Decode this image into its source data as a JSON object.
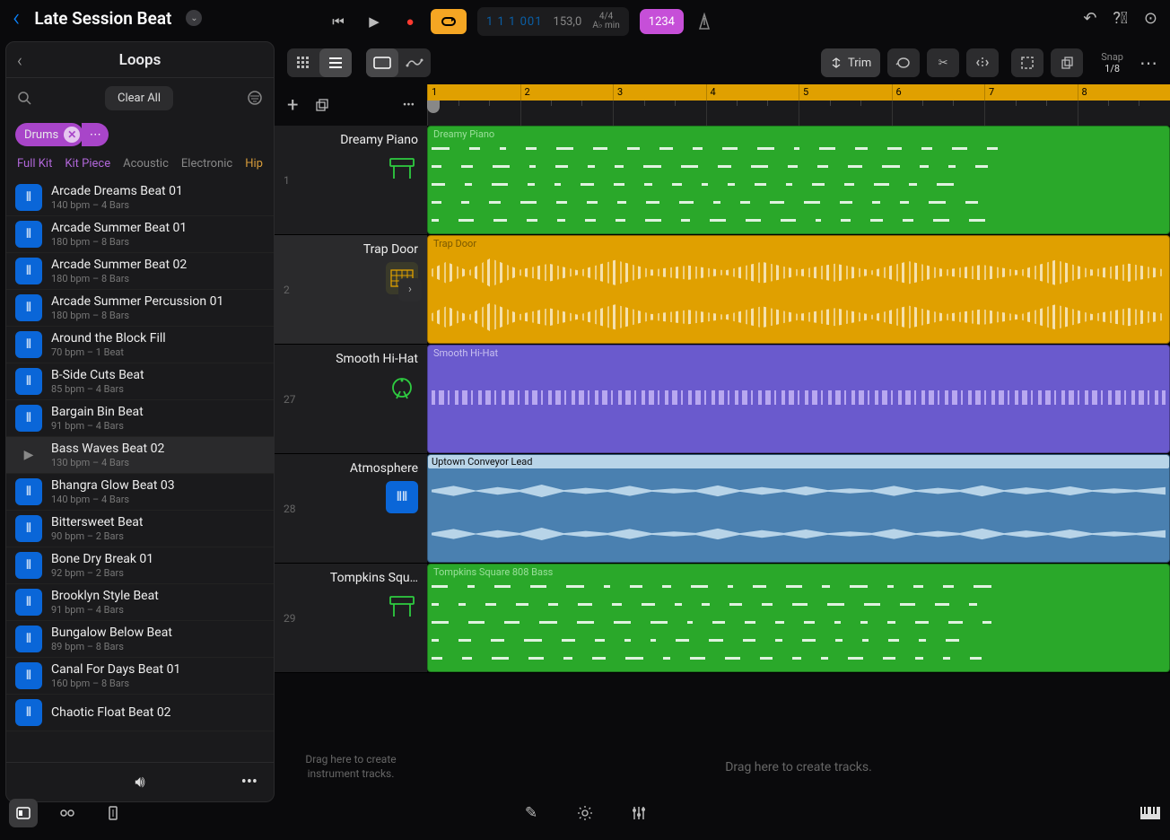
{
  "project": {
    "title": "Late Session Beat"
  },
  "transport": {
    "position": "1 1 1 001",
    "tempo": "153,0",
    "sig_top": "4/4",
    "sig_bot": "A♭ min",
    "count_in": "1234"
  },
  "loops": {
    "title": "Loops",
    "clear": "Clear All",
    "tag": "Drums",
    "filters": [
      {
        "label": "Full Kit",
        "cls": "ft-purple"
      },
      {
        "label": "Kit Piece",
        "cls": "ft-purple"
      },
      {
        "label": "Acoustic",
        "cls": "ft-gray"
      },
      {
        "label": "Electronic",
        "cls": "ft-gray"
      },
      {
        "label": "Hip",
        "cls": "ft-orange"
      }
    ],
    "items": [
      {
        "name": "Arcade Dreams Beat 01",
        "meta": "140 bpm – 4 Bars"
      },
      {
        "name": "Arcade Summer Beat 01",
        "meta": "180 bpm – 8 Bars"
      },
      {
        "name": "Arcade Summer Beat 02",
        "meta": "180 bpm – 8 Bars"
      },
      {
        "name": "Arcade Summer Percussion 01",
        "meta": "180 bpm – 8 Bars"
      },
      {
        "name": "Around the Block Fill",
        "meta": "70 bpm – 1 Beat"
      },
      {
        "name": "B-Side Cuts Beat",
        "meta": "85 bpm – 4 Bars"
      },
      {
        "name": "Bargain Bin Beat",
        "meta": "91 bpm – 4 Bars"
      },
      {
        "name": "Bass Waves Beat 02",
        "meta": "130 bpm – 4 Bars"
      },
      {
        "name": "Bhangra Glow Beat 03",
        "meta": "140 bpm – 4 Bars"
      },
      {
        "name": "Bittersweet Beat",
        "meta": "90 bpm – 2 Bars"
      },
      {
        "name": "Bone Dry Break 01",
        "meta": "92 bpm – 2 Bars"
      },
      {
        "name": "Brooklyn Style Beat",
        "meta": "91 bpm – 4 Bars"
      },
      {
        "name": "Bungalow Below Beat",
        "meta": "89 bpm – 8 Bars"
      },
      {
        "name": "Canal For Days Beat 01",
        "meta": "160 bpm – 8 Bars"
      },
      {
        "name": "Chaotic Float Beat 02",
        "meta": ""
      }
    ],
    "selected_index": 7
  },
  "toolbar": {
    "trim": "Trim",
    "snap_label": "Snap",
    "snap_value": "1/8"
  },
  "ruler": {
    "bars": [
      "1",
      "2",
      "3",
      "4",
      "5",
      "6",
      "7",
      "8"
    ]
  },
  "tracks": [
    {
      "num": "1",
      "name": "Dreamy Piano",
      "region": "Dreamy Piano",
      "color": "r-green",
      "icon": "piano",
      "sel": false
    },
    {
      "num": "2",
      "name": "Trap Door",
      "region": "Trap Door",
      "color": "r-yellow",
      "icon": "drum-machine",
      "sel": true
    },
    {
      "num": "27",
      "name": "Smooth Hi-Hat",
      "region": "Smooth Hi-Hat",
      "color": "r-purple",
      "icon": "drum",
      "sel": false
    },
    {
      "num": "28",
      "name": "Atmosphere",
      "region": "Uptown Conveyor Lead",
      "color": "r-blue",
      "icon": "audio",
      "sel": false
    },
    {
      "num": "29",
      "name": "Tompkins Squ…",
      "region": "Tompkins Square 808 Bass",
      "color": "r-green",
      "icon": "piano",
      "sel": false
    }
  ],
  "hints": {
    "track_drop": "Drag here to create instrument tracks.",
    "region_drop": "Drag here to create tracks."
  },
  "colors": {
    "green": "#2aa82a",
    "yellow": "#e0a000",
    "purple": "#6a5acd",
    "blue": "#4a80b0",
    "accent_pink": "#c64fd8",
    "accent_tag": "#a845c9",
    "loop_icon": "#0a66d8"
  }
}
